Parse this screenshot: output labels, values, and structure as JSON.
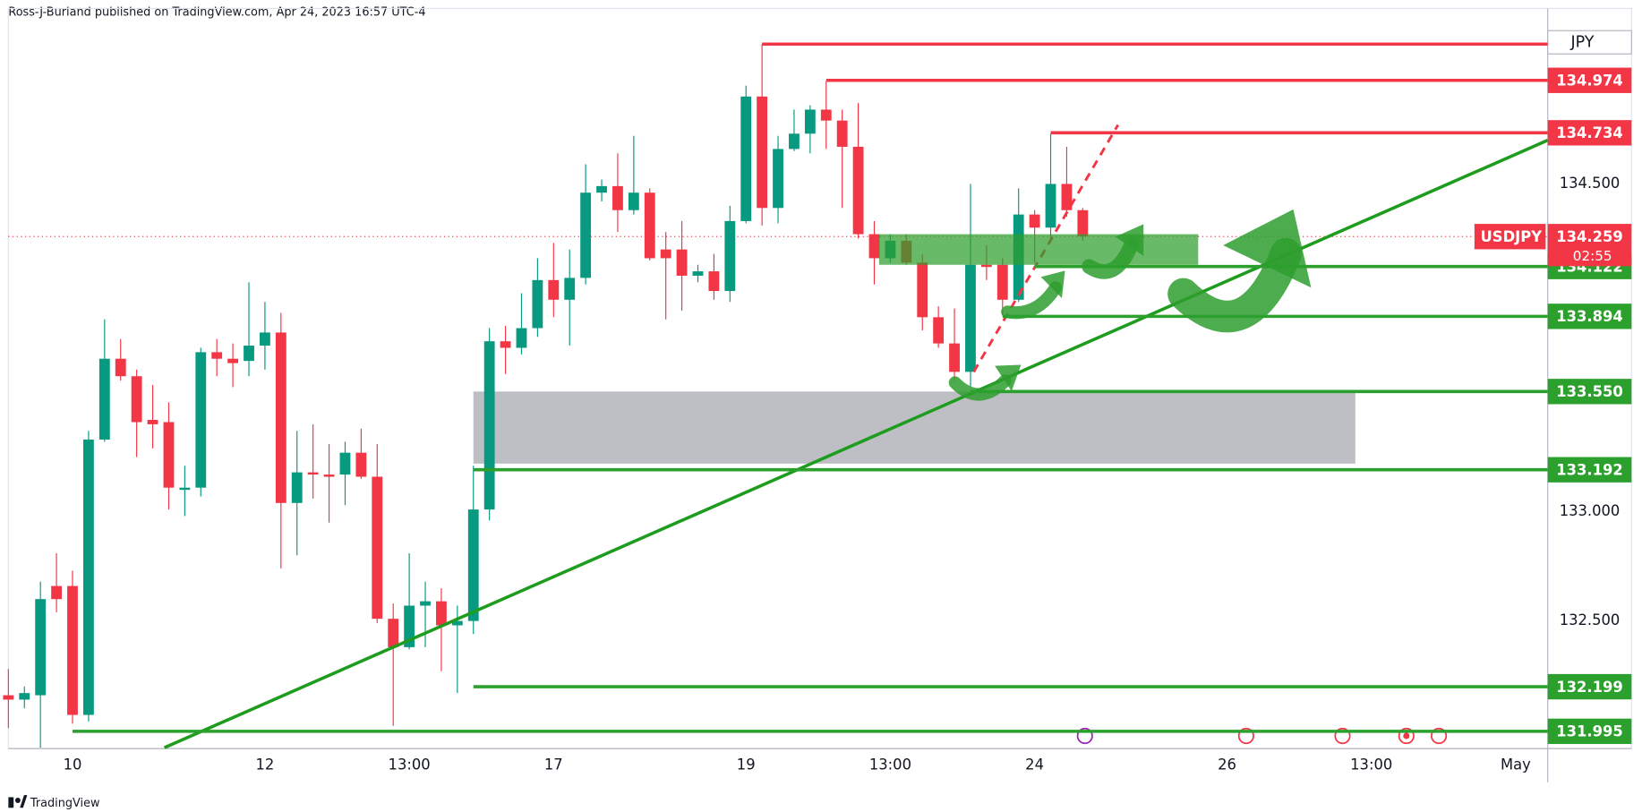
{
  "header": {
    "publisher": "Ross-J-Burland published on TradingView.com, Apr 24, 2023 16:57 UTC-4"
  },
  "chart_data": {
    "type": "candlestick",
    "symbol": "USDJPY",
    "currency": "JPY",
    "last_price": {
      "value": 134.259,
      "label": "134.259"
    },
    "countdown": "02:55",
    "up_color": "#089981",
    "down_color": "#f23645",
    "open": [
      132.16,
      132.14,
      132.16,
      132.66,
      132.66,
      132.07,
      133.33,
      133.7,
      133.62,
      133.42,
      133.41,
      133.1,
      133.11,
      133.73,
      133.7,
      133.69,
      133.76,
      133.82,
      133.04,
      133.18,
      133.17,
      133.17,
      133.27,
      133.16,
      132.51,
      132.38,
      132.57,
      132.59,
      132.48,
      132.5,
      133.01,
      133.78,
      133.75,
      133.84,
      134.06,
      133.97,
      134.07,
      134.46,
      134.49,
      134.38,
      134.46,
      134.2,
      134.2,
      134.08,
      134.1,
      134.01,
      134.33,
      134.9,
      134.39,
      134.66,
      134.73,
      134.84,
      134.79,
      134.67,
      134.27,
      134.16,
      134.24,
      134.14,
      133.89,
      133.77,
      133.64,
      134.13,
      134.13,
      133.97,
      134.36,
      134.3,
      134.5,
      134.38
    ],
    "high": [
      132.28,
      132.2,
      132.68,
      132.81,
      132.73,
      133.37,
      133.88,
      133.79,
      133.65,
      133.58,
      133.5,
      133.21,
      133.75,
      133.79,
      133.77,
      134.05,
      133.96,
      133.91,
      133.37,
      133.4,
      133.31,
      133.32,
      133.38,
      133.31,
      132.58,
      132.81,
      132.68,
      132.65,
      132.57,
      133.21,
      133.84,
      133.85,
      134.0,
      134.16,
      134.23,
      134.2,
      134.59,
      134.52,
      134.64,
      134.72,
      134.48,
      134.28,
      134.33,
      134.13,
      134.18,
      134.4,
      134.95,
      135.14,
      134.72,
      134.84,
      134.86,
      134.97,
      134.84,
      134.87,
      134.33,
      134.27,
      134.27,
      134.18,
      133.94,
      133.93,
      134.5,
      134.22,
      134.16,
      134.48,
      134.38,
      134.73,
      134.67,
      134.39
    ],
    "low": [
      132.01,
      132.1,
      131.92,
      132.54,
      132.03,
      132.04,
      133.32,
      133.6,
      133.25,
      133.29,
      133.01,
      132.98,
      133.07,
      133.62,
      133.57,
      133.62,
      133.65,
      132.74,
      132.8,
      133.06,
      132.95,
      133.03,
      133.15,
      132.49,
      132.02,
      132.37,
      132.38,
      132.27,
      132.17,
      132.44,
      132.96,
      133.63,
      133.72,
      133.8,
      133.89,
      133.76,
      134.04,
      134.42,
      134.28,
      134.36,
      134.15,
      133.88,
      133.92,
      134.05,
      133.97,
      133.96,
      134.32,
      134.31,
      134.32,
      134.65,
      134.64,
      134.66,
      134.39,
      134.25,
      134.04,
      134.14,
      134.13,
      133.83,
      133.75,
      133.6,
      133.57,
      134.06,
      133.9,
      133.96,
      134.14,
      134.24,
      134.35,
      134.24
    ],
    "close": [
      132.14,
      132.17,
      132.6,
      132.6,
      132.07,
      133.33,
      133.7,
      133.62,
      133.41,
      133.4,
      133.11,
      133.11,
      133.73,
      133.7,
      133.68,
      133.76,
      133.82,
      133.04,
      133.18,
      133.17,
      133.16,
      133.27,
      133.16,
      132.51,
      132.38,
      132.57,
      132.59,
      132.48,
      132.5,
      133.01,
      133.78,
      133.75,
      133.84,
      134.06,
      133.97,
      134.07,
      134.46,
      134.49,
      134.38,
      134.46,
      134.16,
      134.16,
      134.08,
      134.1,
      134.01,
      134.33,
      134.9,
      134.39,
      134.66,
      134.73,
      134.84,
      134.79,
      134.67,
      134.27,
      134.16,
      134.24,
      134.14,
      133.89,
      133.77,
      133.64,
      134.13,
      134.12,
      133.97,
      134.36,
      134.3,
      134.5,
      134.38,
      134.26
    ],
    "xlim": [
      0,
      96
    ],
    "ylim": [
      131.916,
      135.303
    ],
    "xticks": [
      {
        "value": 4,
        "label": "10"
      },
      {
        "value": 16,
        "label": "12"
      },
      {
        "value": 25,
        "label": "13:00"
      },
      {
        "value": 34,
        "label": "17"
      },
      {
        "value": 46,
        "label": "19"
      },
      {
        "value": 55,
        "label": "13:00"
      },
      {
        "value": 64,
        "label": "24"
      },
      {
        "value": 76,
        "label": "26"
      },
      {
        "value": 85,
        "label": "13:00"
      },
      {
        "value": 94,
        "label": "May"
      }
    ],
    "yticks": [
      {
        "value": 132.5,
        "label": "132.500"
      },
      {
        "value": 133.0,
        "label": "133.000"
      },
      {
        "value": 134.5,
        "label": "134.500"
      }
    ],
    "levels": [
      {
        "value": 135.14,
        "from": 47,
        "color": "#f23645"
      },
      {
        "value": 134.974,
        "label": "134.974",
        "from": 51,
        "color": "#f23645"
      },
      {
        "value": 134.734,
        "label": "134.734",
        "from": 65,
        "color": "#f23645"
      },
      {
        "value": 134.122,
        "label": "134.122",
        "from": 64,
        "color": "#2ca02c"
      },
      {
        "value": 133.894,
        "label": "133.894",
        "from": 62,
        "color": "#2ca02c"
      },
      {
        "value": 133.55,
        "label": "133.550",
        "from": 60,
        "color": "#2ca02c"
      },
      {
        "value": 133.192,
        "label": "133.192",
        "from": 29,
        "color": "#2ca02c"
      },
      {
        "value": 132.199,
        "label": "132.199",
        "from": 29,
        "color": "#2ca02c"
      },
      {
        "value": 131.995,
        "label": "131.995",
        "from": 4,
        "color": "#2ca02c"
      }
    ],
    "zones": [
      {
        "low": 133.22,
        "high": 133.55,
        "from": 29,
        "to": 84,
        "color": "rgba(149,152,161,0.62)"
      },
      {
        "low": 134.13,
        "high": 134.27,
        "from": 54.3,
        "to": 74.2,
        "color": "rgba(46,158,46,0.72)"
      }
    ],
    "trendlines": [
      {
        "x": [
          9.73,
          96
        ],
        "y": [
          131.92,
          134.7
        ],
        "color": "#1e9c1e",
        "dash": false
      },
      {
        "x": [
          60.2,
          69.2
        ],
        "y": [
          133.64,
          134.77
        ],
        "color": "#f23645",
        "dash": true
      }
    ]
  },
  "footer": {
    "brand": "TradingView"
  }
}
